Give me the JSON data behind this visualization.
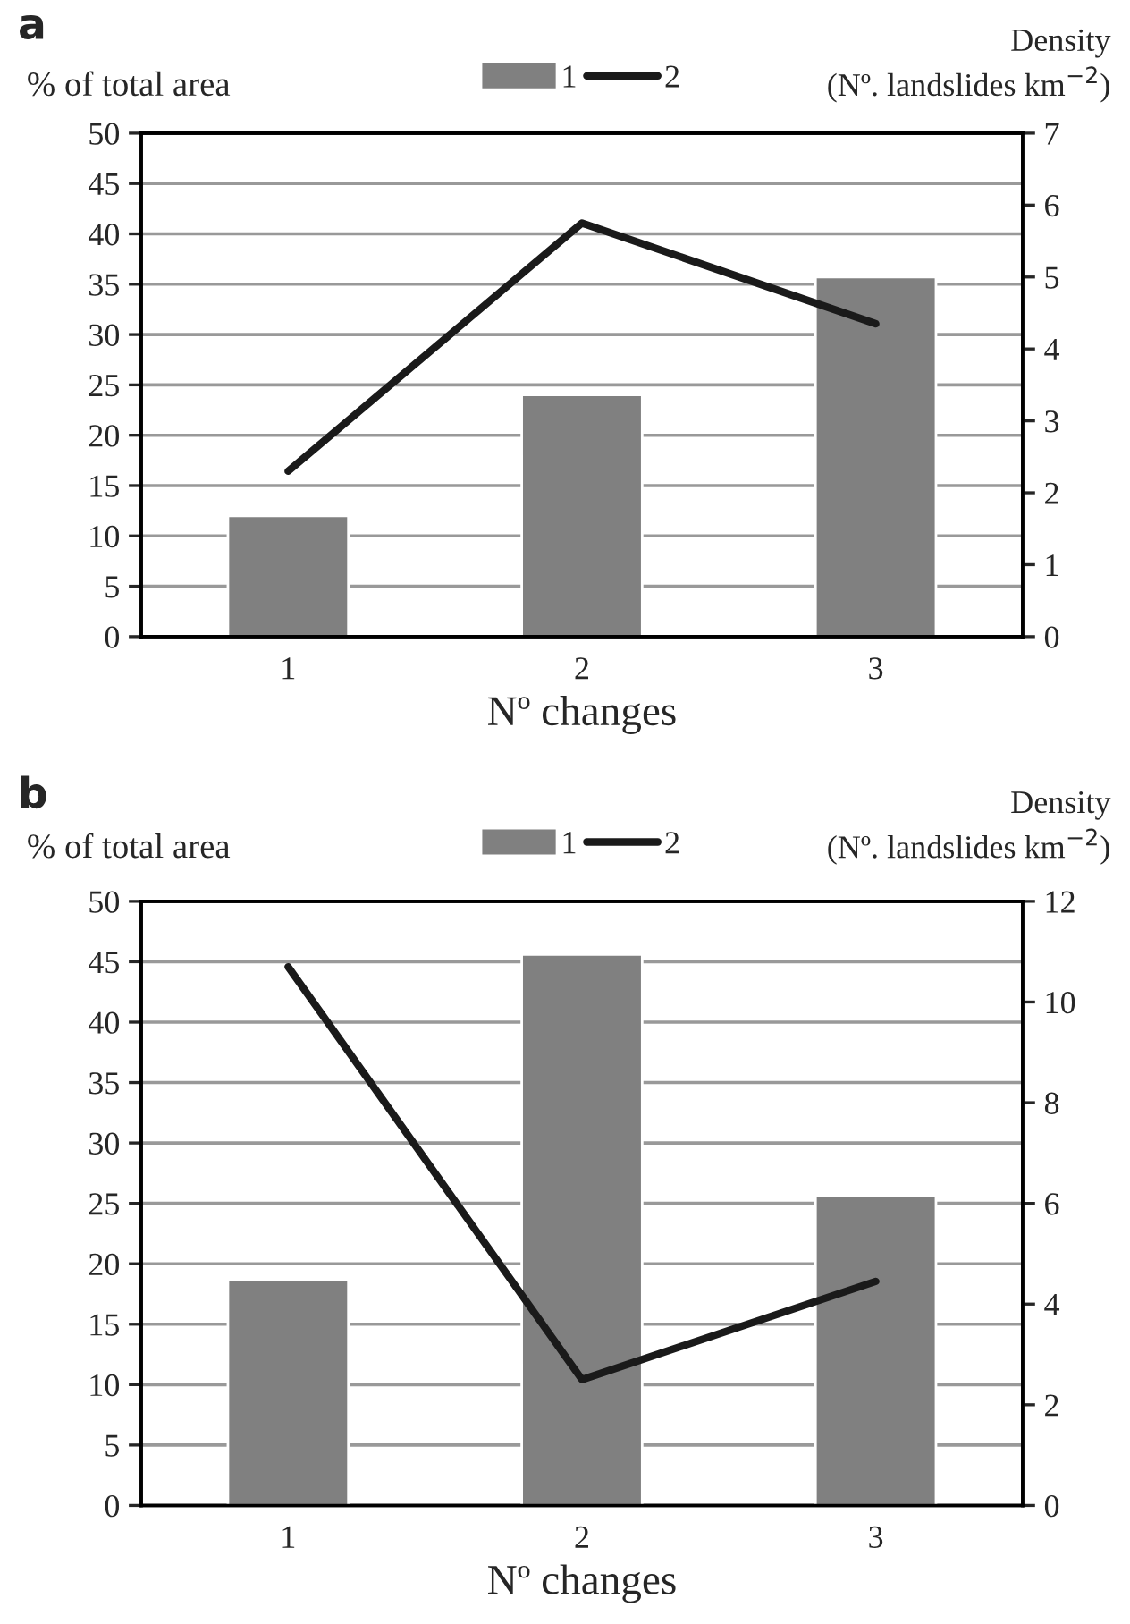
{
  "chart_data": [
    {
      "type": "bar",
      "title": "a",
      "categories": [
        "1",
        "2",
        "3"
      ],
      "xlabel": "Nº changes",
      "ylabel": "% of total area",
      "y2label": "Density\n(Nº. landslides km$^{−2}$)",
      "ylim": [
        0,
        50
      ],
      "yticks": [
        0,
        5,
        10,
        15,
        20,
        25,
        30,
        35,
        40,
        45,
        50
      ],
      "y2lim": [
        0,
        7
      ],
      "y2ticks": [
        0,
        1,
        2,
        3,
        4,
        5,
        6,
        7
      ],
      "grid": "y",
      "legend": "top",
      "series": [
        {
          "name": "1",
          "color": "#808080",
          "values": [
            12,
            24,
            35.7
          ]
        },
        {
          "name": "2",
          "type": "line",
          "axis": "y2",
          "color": "#1a1a1a",
          "values": [
            2.3,
            5.75,
            4.35
          ]
        }
      ]
    },
    {
      "type": "bar",
      "title": "b",
      "categories": [
        "1",
        "2",
        "3"
      ],
      "xlabel": "Nº changes",
      "ylabel": "% of total area",
      "y2label": "Density\n(Nº. landslides km$^{−2}$)",
      "ylim": [
        0,
        50
      ],
      "yticks": [
        0,
        5,
        10,
        15,
        20,
        25,
        30,
        35,
        40,
        45,
        50
      ],
      "y2lim": [
        0,
        12
      ],
      "y2ticks": [
        0,
        2,
        4,
        6,
        8,
        10,
        12
      ],
      "grid": "y",
      "legend": "top",
      "series": [
        {
          "name": "1",
          "color": "#808080",
          "values": [
            18.7,
            45.6,
            25.6
          ]
        },
        {
          "name": "2",
          "type": "line",
          "axis": "y2",
          "color": "#1a1a1a",
          "values": [
            10.7,
            2.5,
            4.45
          ]
        }
      ]
    }
  ]
}
